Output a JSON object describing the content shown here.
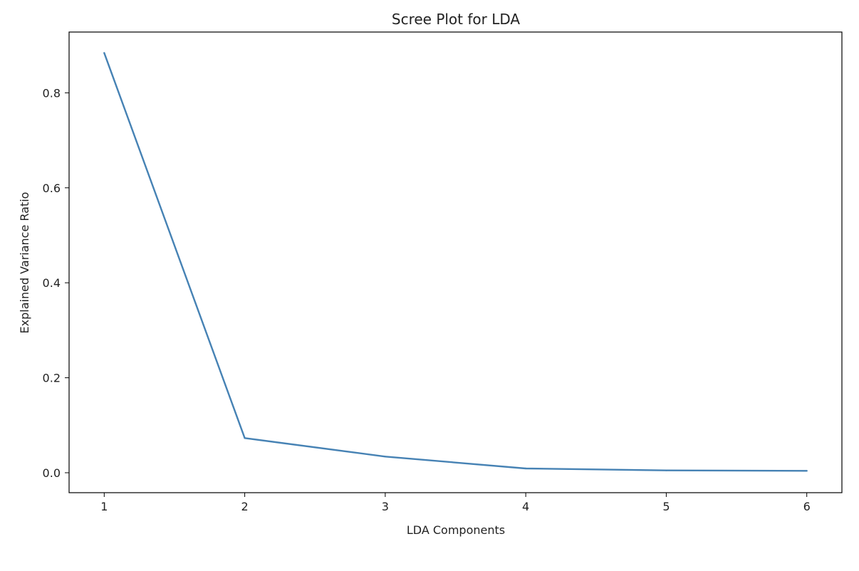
{
  "chart_data": {
    "type": "line",
    "title": "Scree Plot for LDA",
    "xlabel": "LDA Components",
    "ylabel": "Explained Variance Ratio",
    "x": [
      1,
      2,
      3,
      4,
      5,
      6
    ],
    "series": [
      {
        "values": [
          0.884,
          0.073,
          0.034,
          0.009,
          0.005,
          0.004
        ],
        "color": "#4682b4"
      }
    ],
    "xlim": [
      0.75,
      6.25
    ],
    "ylim": [
      -0.042,
      0.928
    ],
    "xticks": [
      1,
      2,
      3,
      4,
      5,
      6
    ],
    "xtick_labels": [
      "1",
      "2",
      "3",
      "4",
      "5",
      "6"
    ],
    "yticks": [
      0.0,
      0.2,
      0.4,
      0.6,
      0.8
    ],
    "ytick_labels": [
      "0.0",
      "0.2",
      "0.4",
      "0.6",
      "0.8"
    ],
    "grid": false,
    "legend": false
  }
}
